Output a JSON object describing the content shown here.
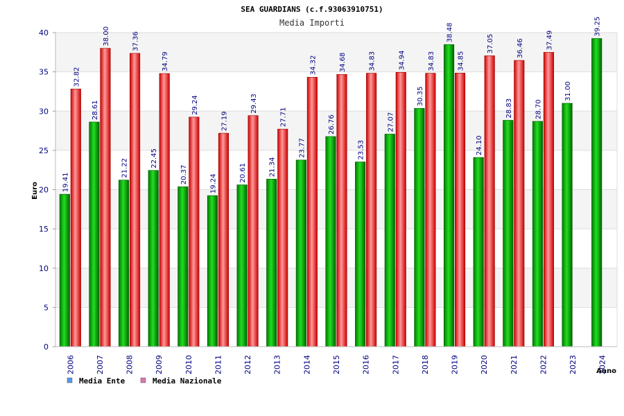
{
  "chart_data": {
    "type": "bar",
    "title": "SEA GUARDIANS (c.f.93063910751)",
    "subtitle": "Media Importi",
    "xlabel": "Anno",
    "ylabel": "Euro",
    "ylim": [
      0,
      40
    ],
    "yticks": [
      0,
      5,
      10,
      15,
      20,
      25,
      30,
      35,
      40
    ],
    "categories": [
      "2006",
      "2007",
      "2008",
      "2009",
      "2010",
      "2011",
      "2012",
      "2013",
      "2014",
      "2015",
      "2016",
      "2017",
      "2018",
      "2019",
      "2020",
      "2021",
      "2022",
      "2023",
      "2024"
    ],
    "series": [
      {
        "name": "Media Ente",
        "color": "#00aa00",
        "values": [
          19.41,
          28.61,
          21.22,
          22.45,
          20.37,
          19.24,
          20.61,
          21.34,
          23.77,
          26.76,
          23.53,
          27.07,
          30.35,
          38.48,
          24.1,
          28.83,
          28.7,
          31.0,
          39.25
        ],
        "labels": [
          "19.41",
          "28.61",
          "21.22",
          "22.45",
          "20.37",
          "19.24",
          "20.61",
          "21.34",
          "23.77",
          "26.76",
          "23.53",
          "27.07",
          "30.35",
          "38.48",
          "24.10",
          "28.83",
          "28.70",
          "31.00",
          "39.25"
        ]
      },
      {
        "name": "Media Nazionale",
        "color": "#dd1111",
        "values": [
          32.82,
          38.0,
          37.36,
          34.79,
          29.24,
          27.19,
          29.43,
          27.71,
          34.32,
          34.68,
          34.83,
          34.94,
          34.83,
          34.85,
          37.05,
          36.46,
          37.49,
          null,
          null
        ],
        "labels": [
          "32.82",
          "38.00",
          "37.36",
          "34.79",
          "29.24",
          "27.19",
          "29.43",
          "27.71",
          "34.32",
          "34.68",
          "34.83",
          "34.94",
          "34.83",
          "34.85",
          "37.05",
          "36.46",
          "37.49",
          null,
          null
        ]
      }
    ],
    "legend": {
      "placement": "bottom-left",
      "items": [
        {
          "label": "Media Ente",
          "color": "#5599ee"
        },
        {
          "label": "Media Nazionale",
          "color": "#dd77aa"
        }
      ]
    },
    "grid": true,
    "band_colors": [
      "#f4f4f4",
      "#ffffff"
    ],
    "axis_color": "#000080",
    "value_label_color": "#000080"
  }
}
